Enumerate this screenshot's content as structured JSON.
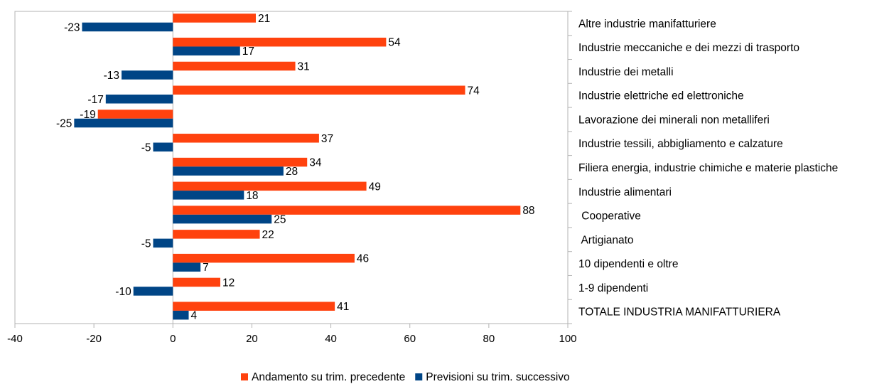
{
  "chart_data": {
    "type": "bar",
    "orientation": "horizontal",
    "categories": [
      "Altre industrie manifatturiere",
      "Industrie meccaniche e dei mezzi di trasporto",
      "Industrie dei metalli",
      "Industrie elettriche ed elettroniche",
      "Lavorazione dei minerali non metalliferi",
      "Industrie tessili, abbigliamento e calzature",
      "Filiera energia, industrie chimiche e materie plastiche",
      "Industrie alimentari",
      " Cooperative",
      " Artigianato",
      "10 dipendenti e oltre",
      "1-9 dipendenti",
      "TOTALE INDUSTRIA MANIFATTURIERA"
    ],
    "series": [
      {
        "name": "Andamento su trim. precedente",
        "color": "#ff420e",
        "values": [
          21,
          54,
          31,
          74,
          -19,
          37,
          34,
          49,
          88,
          22,
          46,
          12,
          41
        ]
      },
      {
        "name": "Previsioni su trim. successivo",
        "color": "#004586",
        "values": [
          -23,
          17,
          -13,
          -17,
          -25,
          -5,
          28,
          18,
          25,
          -5,
          7,
          -10,
          4
        ]
      }
    ],
    "xlim": [
      -40,
      100
    ],
    "xticks": [
      -40,
      -20,
      0,
      20,
      40,
      60,
      80,
      100
    ],
    "grid": false,
    "legend": "bottom",
    "title": "",
    "xlabel": "",
    "ylabel": ""
  }
}
